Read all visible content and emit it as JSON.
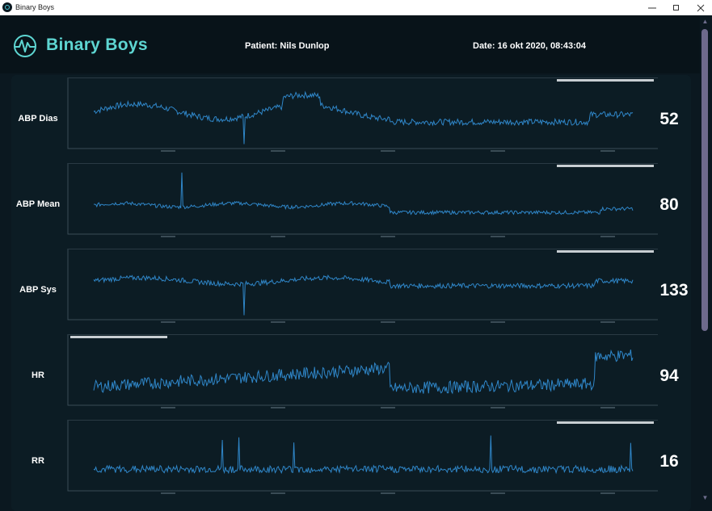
{
  "window": {
    "title": "Binary Boys"
  },
  "header": {
    "brand": "Binary Boys",
    "patient": "Patient: Nils Dunlop",
    "date": "Date: 16 okt 2020, 08:43:04"
  },
  "colors": {
    "background": "#0b1820",
    "panel": "#0c1c24",
    "accent": "#5ed6d2",
    "trace": "#2f86c8"
  },
  "vitals": [
    {
      "label": "ABP Dias",
      "value": "52"
    },
    {
      "label": "ABP Mean",
      "value": "80"
    },
    {
      "label": "ABP Sys",
      "value": "133"
    },
    {
      "label": "HR",
      "value": "94"
    },
    {
      "label": "RR",
      "value": "16"
    }
  ],
  "icons": {
    "app": "app-logo-icon",
    "logo": "heartbeat-logo-icon",
    "minimize": "minimize-icon",
    "maximize": "maximize-icon",
    "close": "close-icon"
  }
}
